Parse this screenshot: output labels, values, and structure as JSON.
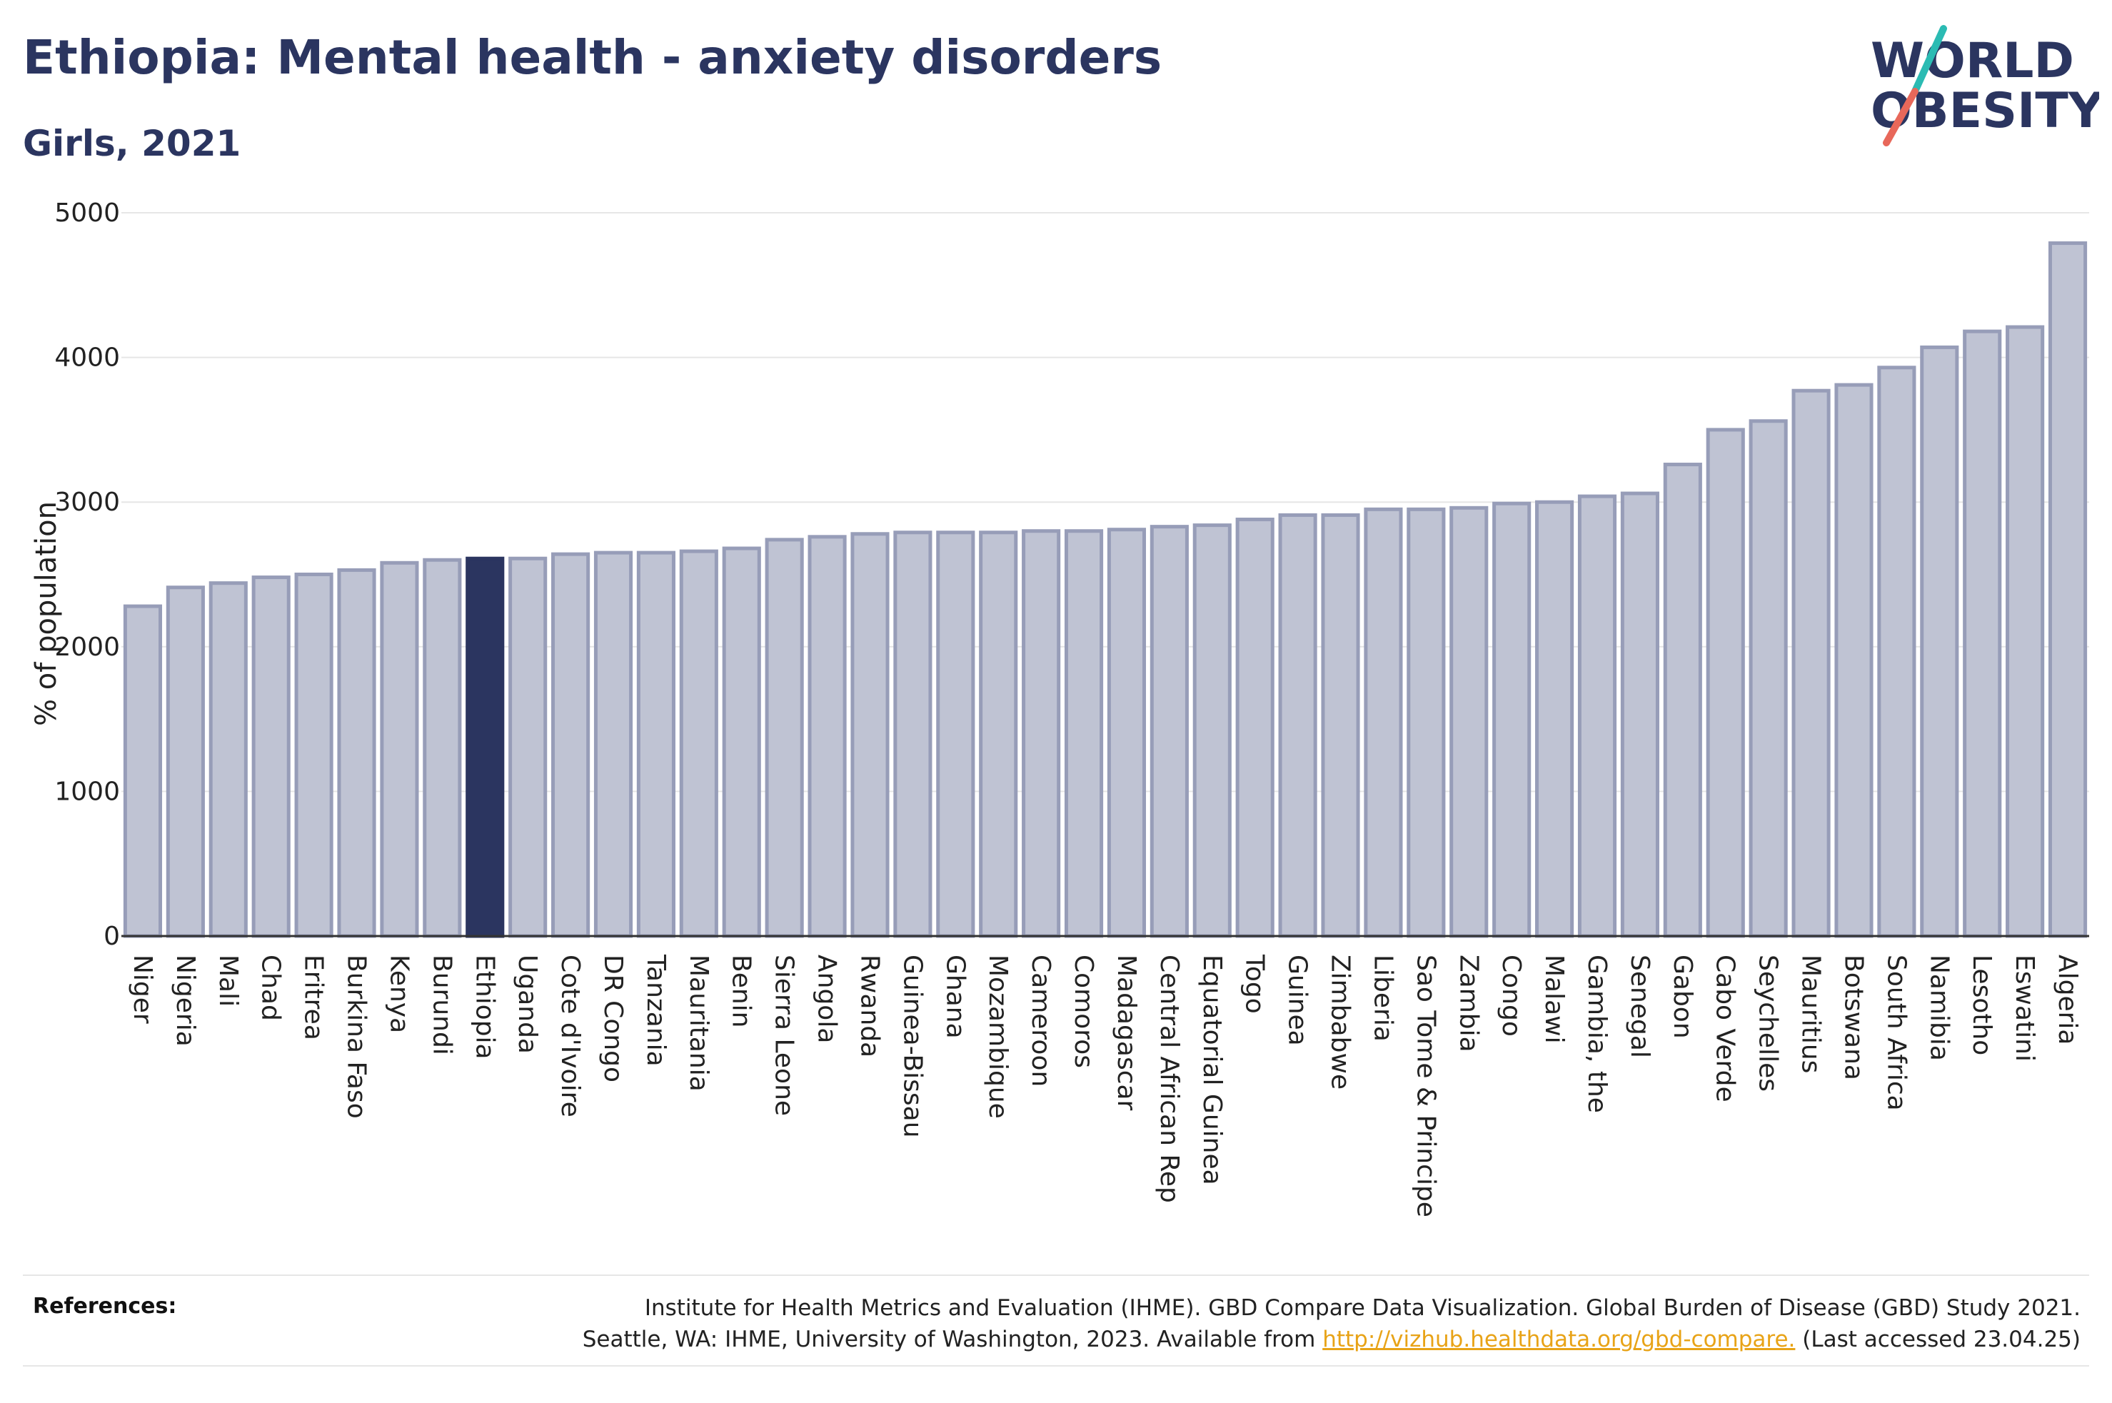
{
  "header": {
    "title": "Ethiopia: Mental health - anxiety disorders",
    "subtitle": "Girls, 2021"
  },
  "logo": {
    "line1": "WORLD",
    "line2": "OBESITY",
    "color_text": "#2b3560",
    "color_slash_teal": "#2bbbb3",
    "color_slash_coral": "#e8685a"
  },
  "chart_data": {
    "type": "bar",
    "title": "Ethiopia: Mental health - anxiety disorders",
    "subtitle": "Girls, 2021",
    "xlabel": "",
    "ylabel": "% of population",
    "ylim": [
      0,
      5000
    ],
    "yticks": [
      0,
      1000,
      2000,
      3000,
      4000,
      5000
    ],
    "highlight": "Ethiopia",
    "colors": {
      "bar": "#bfc3d3",
      "bar_border": "#979db8",
      "highlight": "#2b3560"
    },
    "grid": true,
    "categories": [
      "Niger",
      "Nigeria",
      "Mali",
      "Chad",
      "Eritrea",
      "Burkina Faso",
      "Kenya",
      "Burundi",
      "Ethiopia",
      "Uganda",
      "Cote d'Ivoire",
      "DR Congo",
      "Tanzania",
      "Mauritania",
      "Benin",
      "Sierra Leone",
      "Angola",
      "Rwanda",
      "Guinea-Bissau",
      "Ghana",
      "Mozambique",
      "Cameroon",
      "Comoros",
      "Madagascar",
      "Central African Rep",
      "Equatorial Guinea",
      "Togo",
      "Guinea",
      "Zimbabwe",
      "Liberia",
      "Sao Tome & Principe",
      "Zambia",
      "Congo",
      "Malawi",
      "Gambia, the",
      "Senegal",
      "Gabon",
      "Cabo Verde",
      "Seychelles",
      "Mauritius",
      "Botswana",
      "South Africa",
      "Namibia",
      "Lesotho",
      "Eswatini",
      "Algeria"
    ],
    "values": [
      2280,
      2410,
      2440,
      2480,
      2500,
      2530,
      2580,
      2600,
      2610,
      2610,
      2640,
      2650,
      2650,
      2660,
      2680,
      2740,
      2760,
      2780,
      2790,
      2790,
      2790,
      2800,
      2800,
      2810,
      2830,
      2840,
      2880,
      2910,
      2910,
      2950,
      2950,
      2960,
      2990,
      3000,
      3040,
      3060,
      3260,
      3500,
      3560,
      3770,
      3810,
      3930,
      4070,
      4180,
      4210,
      4790
    ]
  },
  "references": {
    "label": "References:",
    "line1": "Institute for Health Metrics and Evaluation (IHME). GBD Compare Data Visualization. Global Burden of Disease (GBD) Study 2021.",
    "line2_prefix": "Seattle, WA: IHME, University of Washington, 2023. Available from",
    "link": "http://vizhub.healthdata.org/gbd-compare.",
    "line2_suffix": "(Last accessed 23.04.25)",
    "link_color": "#e8a317"
  }
}
